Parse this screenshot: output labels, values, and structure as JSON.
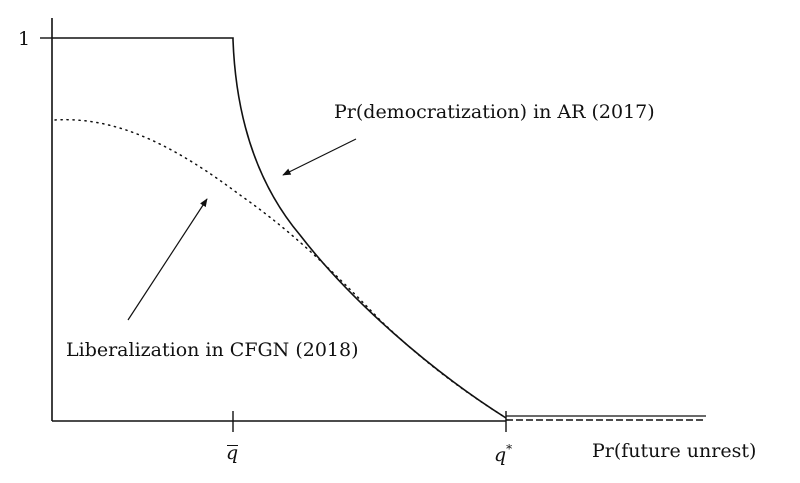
{
  "figure": {
    "x_axis_label": "Pr(future unrest)",
    "y_tick_label": "1",
    "q_bar_label": "q",
    "q_star_label": "q",
    "q_star_superscript": "*"
  },
  "annotations": {
    "ar": "Pr(democratization) in AR (2017)",
    "cfgn": "Liberalization in CFGN (2018)"
  },
  "curves": {
    "ar": {
      "style": "solid",
      "description_points": [
        [
          0,
          1
        ],
        [
          0.276,
          1
        ],
        [
          0.276,
          0.95
        ],
        [
          0.4,
          0.43
        ],
        [
          0.695,
          0
        ]
      ]
    },
    "cfgn": {
      "style": "dotted"
    }
  },
  "colors": {
    "ink": "#111111",
    "background": "#ffffff"
  }
}
